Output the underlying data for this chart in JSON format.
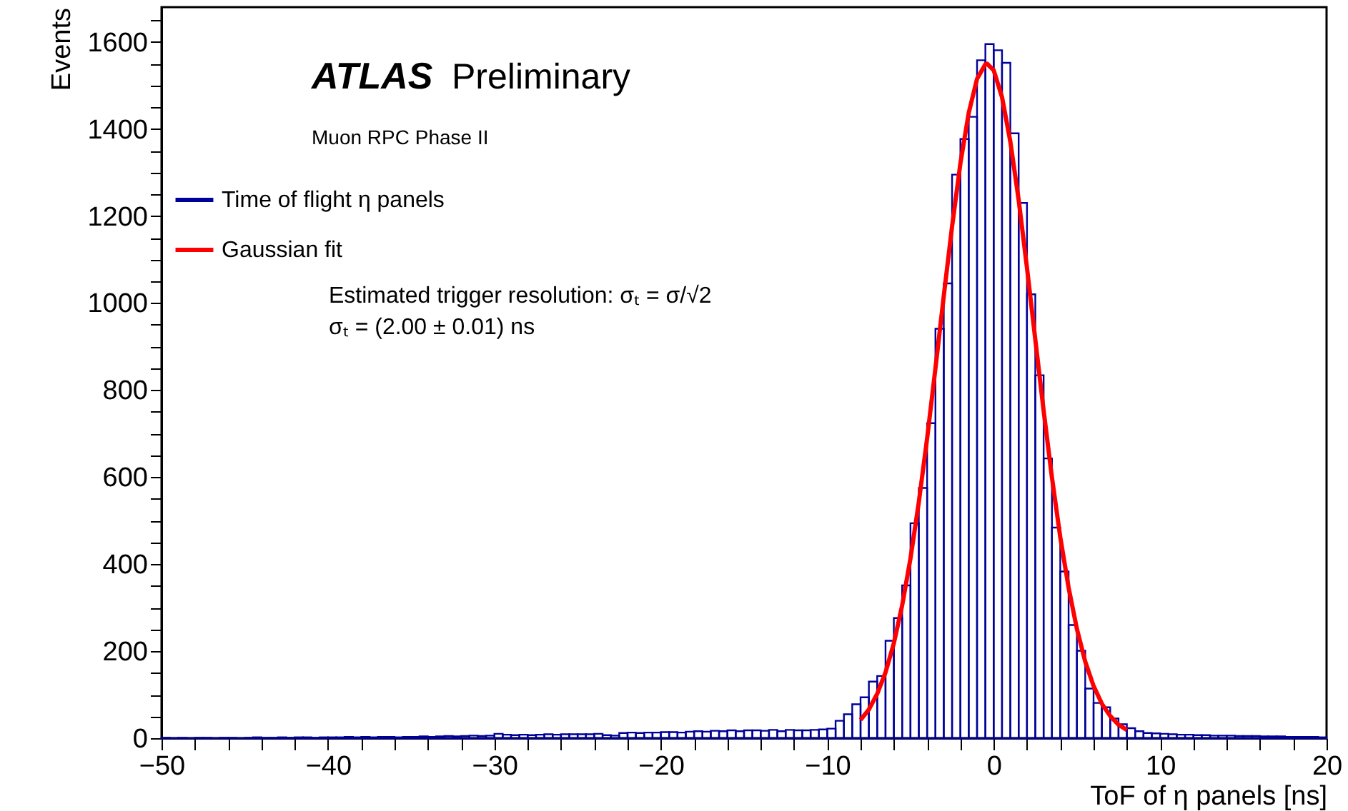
{
  "chart_data": {
    "type": "histogram",
    "xlabel": "ToF of η panels [ns]",
    "ylabel": "Events",
    "annotations": [
      "ATLAS",
      "Preliminary",
      "Muon RPC Phase II",
      "Estimated trigger resolution: σₜ = σ/√2",
      "σₜ = (2.00 ± 0.01) ns"
    ],
    "xlim": [
      -50,
      20
    ],
    "ylim": [
      0,
      1680
    ],
    "xticks": [
      -50,
      {
        "value": -48,
        "label": null
      },
      {
        "value": -46,
        "label": null
      },
      {
        "value": -44,
        "label": null
      },
      {
        "value": -42,
        "label": null
      },
      -40,
      {
        "value": -38,
        "label": null
      },
      {
        "value": -36,
        "label": null
      },
      {
        "value": -34,
        "label": null
      },
      {
        "value": -32,
        "label": null
      },
      -30,
      {
        "value": -28,
        "label": null
      },
      {
        "value": -26,
        "label": null
      },
      {
        "value": -24,
        "label": null
      },
      {
        "value": -22,
        "label": null
      },
      -20,
      {
        "value": -18,
        "label": null
      },
      {
        "value": -16,
        "label": null
      },
      {
        "value": -14,
        "label": null
      },
      {
        "value": -12,
        "label": null
      },
      -10,
      {
        "value": -8,
        "label": null
      },
      {
        "value": -6,
        "label": null
      },
      {
        "value": -4,
        "label": null
      },
      {
        "value": -2,
        "label": null
      },
      0,
      {
        "value": 2,
        "label": null
      },
      {
        "value": 4,
        "label": null
      },
      {
        "value": 6,
        "label": null
      },
      {
        "value": 8,
        "label": null
      },
      10,
      {
        "value": 12,
        "label": null
      },
      {
        "value": 14,
        "label": null
      },
      {
        "value": 16,
        "label": null
      },
      {
        "value": 18,
        "label": null
      },
      20
    ],
    "yticks": [
      0,
      {
        "value": 50,
        "label": null
      },
      {
        "value": 100,
        "label": null
      },
      {
        "value": 150,
        "label": null
      },
      200,
      {
        "value": 250,
        "label": null
      },
      {
        "value": 300,
        "label": null
      },
      {
        "value": 350,
        "label": null
      },
      400,
      {
        "value": 450,
        "label": null
      },
      {
        "value": 500,
        "label": null
      },
      {
        "value": 550,
        "label": null
      },
      600,
      {
        "value": 650,
        "label": null
      },
      {
        "value": 700,
        "label": null
      },
      {
        "value": 750,
        "label": null
      },
      800,
      {
        "value": 850,
        "label": null
      },
      {
        "value": 900,
        "label": null
      },
      {
        "value": 950,
        "label": null
      },
      1000,
      {
        "value": 1050,
        "label": null
      },
      {
        "value": 1100,
        "label": null
      },
      {
        "value": 1150,
        "label": null
      },
      1200,
      {
        "value": 1250,
        "label": null
      },
      {
        "value": 1300,
        "label": null
      },
      {
        "value": 1350,
        "label": null
      },
      1400,
      {
        "value": 1450,
        "label": null
      },
      {
        "value": 1500,
        "label": null
      },
      {
        "value": 1550,
        "label": null
      },
      1600,
      {
        "value": 1650,
        "label": null
      }
    ],
    "grid": false,
    "legend": "top left",
    "series": [
      {
        "name": "Time of flight η panels",
        "color": "#000099",
        "bins": [
          -50,
          -49.5,
          -49,
          -48.5,
          -48,
          -47.5,
          -47,
          -46.5,
          -46,
          -45.5,
          -45,
          -44.5,
          -44,
          -43.5,
          -43,
          -42.5,
          -42,
          -41.5,
          -41,
          -40.5,
          -40,
          -39.5,
          -39,
          -38.5,
          -38,
          -37.5,
          -37,
          -36.5,
          -36,
          -35.5,
          -35,
          -34.5,
          -34,
          -33.5,
          -33,
          -32.5,
          -32,
          -31.5,
          -31,
          -30.5,
          -30,
          -29.5,
          -29,
          -28.5,
          -28,
          -27.5,
          -27,
          -26.5,
          -26,
          -25.5,
          -25,
          -24.5,
          -24,
          -23.5,
          -23,
          -22.5,
          -22,
          -21.5,
          -21,
          -20.5,
          -20,
          -19.5,
          -19,
          -18.5,
          -18,
          -17.5,
          -17,
          -16.5,
          -16,
          -15.5,
          -15,
          -14.5,
          -14,
          -13.5,
          -13,
          -12.5,
          -12,
          -11.5,
          -11,
          -10.5,
          -10,
          -9.5,
          -9,
          -8.5,
          -8,
          -7.5,
          -7,
          -6.5,
          -6,
          -5.5,
          -5,
          -4.5,
          -4,
          -3.5,
          -3,
          -2.5,
          -2,
          -1.5,
          -1,
          -0.5,
          0,
          0.5,
          1,
          1.5,
          2,
          2.5,
          3,
          3.5,
          4,
          4.5,
          5,
          5.5,
          6,
          6.5,
          7,
          7.5,
          8,
          8.5,
          9,
          9.5,
          10,
          10.5,
          11,
          11.5,
          12,
          12.5,
          13,
          13.5,
          14,
          14.5,
          15,
          15.5,
          16,
          16.5,
          17,
          17.5,
          18,
          18.5,
          19,
          19.5,
          20
        ],
        "values": [
          1,
          0,
          1,
          0,
          1,
          1,
          0,
          1,
          1,
          0,
          1,
          2,
          1,
          1,
          2,
          1,
          2,
          2,
          1,
          2,
          2,
          2,
          3,
          2,
          3,
          2,
          3,
          3,
          2,
          3,
          3,
          4,
          3,
          4,
          5,
          4,
          5,
          6,
          5,
          6,
          10,
          8,
          7,
          8,
          7,
          8,
          9,
          8,
          9,
          9,
          9,
          9,
          10,
          7,
          6,
          12,
          13,
          12,
          13,
          13,
          14,
          14,
          13,
          15,
          16,
          15,
          17,
          16,
          18,
          16,
          18,
          18,
          17,
          19,
          16,
          19,
          18,
          18,
          19,
          20,
          22,
          40,
          55,
          78,
          94,
          130,
          143,
          224,
          276,
          351,
          494,
          575,
          724,
          941,
          1045,
          1295,
          1377,
          1428,
          1558,
          1595,
          1581,
          1552,
          1390,
          1230,
          1020,
          834,
          643,
          484,
          383,
          260,
          201,
          114,
          81,
          71,
          45,
          32,
          23,
          16,
          12,
          11,
          10,
          9,
          8,
          8,
          7,
          7,
          6,
          6,
          6,
          5,
          5,
          5,
          4,
          4,
          4,
          3,
          3,
          3,
          3,
          2
        ]
      },
      {
        "name": "Gaussian fit",
        "color": "#ff0000",
        "type": "line",
        "x": [
          -8,
          -7.5,
          -7,
          -6.5,
          -6,
          -5.5,
          -5,
          -4.5,
          -4,
          -3.5,
          -3,
          -2.5,
          -2,
          -1.5,
          -1,
          -0.5,
          -0.4,
          0,
          0.5,
          1,
          1.5,
          2,
          2.5,
          3,
          3.5,
          4,
          4.5,
          5,
          5.5,
          6,
          6.5,
          7,
          7.5,
          8
        ],
        "values": [
          42,
          66,
          102,
          151,
          218,
          305,
          413,
          542,
          689,
          850,
          1016,
          1176,
          1321,
          1437,
          1515,
          1549,
          1550,
          1535,
          1473,
          1371,
          1237,
          1081,
          916,
          753,
          599,
          462,
          346,
          251,
          176,
          120,
          79,
          51,
          31,
          19
        ]
      }
    ]
  }
}
